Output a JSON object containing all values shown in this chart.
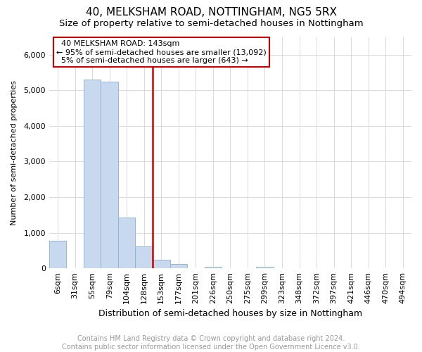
{
  "title": "40, MELKSHAM ROAD, NOTTINGHAM, NG5 5RX",
  "subtitle": "Size of property relative to semi-detached houses in Nottingham",
  "xlabel": "Distribution of semi-detached houses by size in Nottingham",
  "ylabel": "Number of semi-detached properties",
  "annotation_title": "40 MELKSHAM ROAD: 143sqm",
  "annotation_line1": "← 95% of semi-detached houses are smaller (13,092)",
  "annotation_line2": "5% of semi-detached houses are larger (643) →",
  "bar_color": "#c8d8ee",
  "vline_color": "#cc0000",
  "annotation_box_edgecolor": "#cc0000",
  "annotation_box_facecolor": "#ffffff",
  "grid_color": "#d8d8e8",
  "footer_line1": "Contains HM Land Registry data © Crown copyright and database right 2024.",
  "footer_line2": "Contains public sector information licensed under the Open Government Licence v3.0.",
  "categories": [
    "6sqm",
    "31sqm",
    "55sqm",
    "79sqm",
    "104sqm",
    "128sqm",
    "153sqm",
    "177sqm",
    "201sqm",
    "226sqm",
    "250sqm",
    "275sqm",
    "299sqm",
    "323sqm",
    "348sqm",
    "372sqm",
    "397sqm",
    "421sqm",
    "446sqm",
    "470sqm",
    "494sqm"
  ],
  "values": [
    780,
    0,
    5300,
    5250,
    1430,
    620,
    250,
    125,
    0,
    50,
    0,
    0,
    40,
    0,
    0,
    0,
    0,
    0,
    0,
    0,
    0
  ],
  "ylim": [
    0,
    6500
  ],
  "vline_x_index": 6,
  "title_fontsize": 11,
  "subtitle_fontsize": 9.5,
  "xlabel_fontsize": 9,
  "ylabel_fontsize": 8,
  "tick_fontsize": 8,
  "annotation_fontsize": 8,
  "footer_fontsize": 7
}
